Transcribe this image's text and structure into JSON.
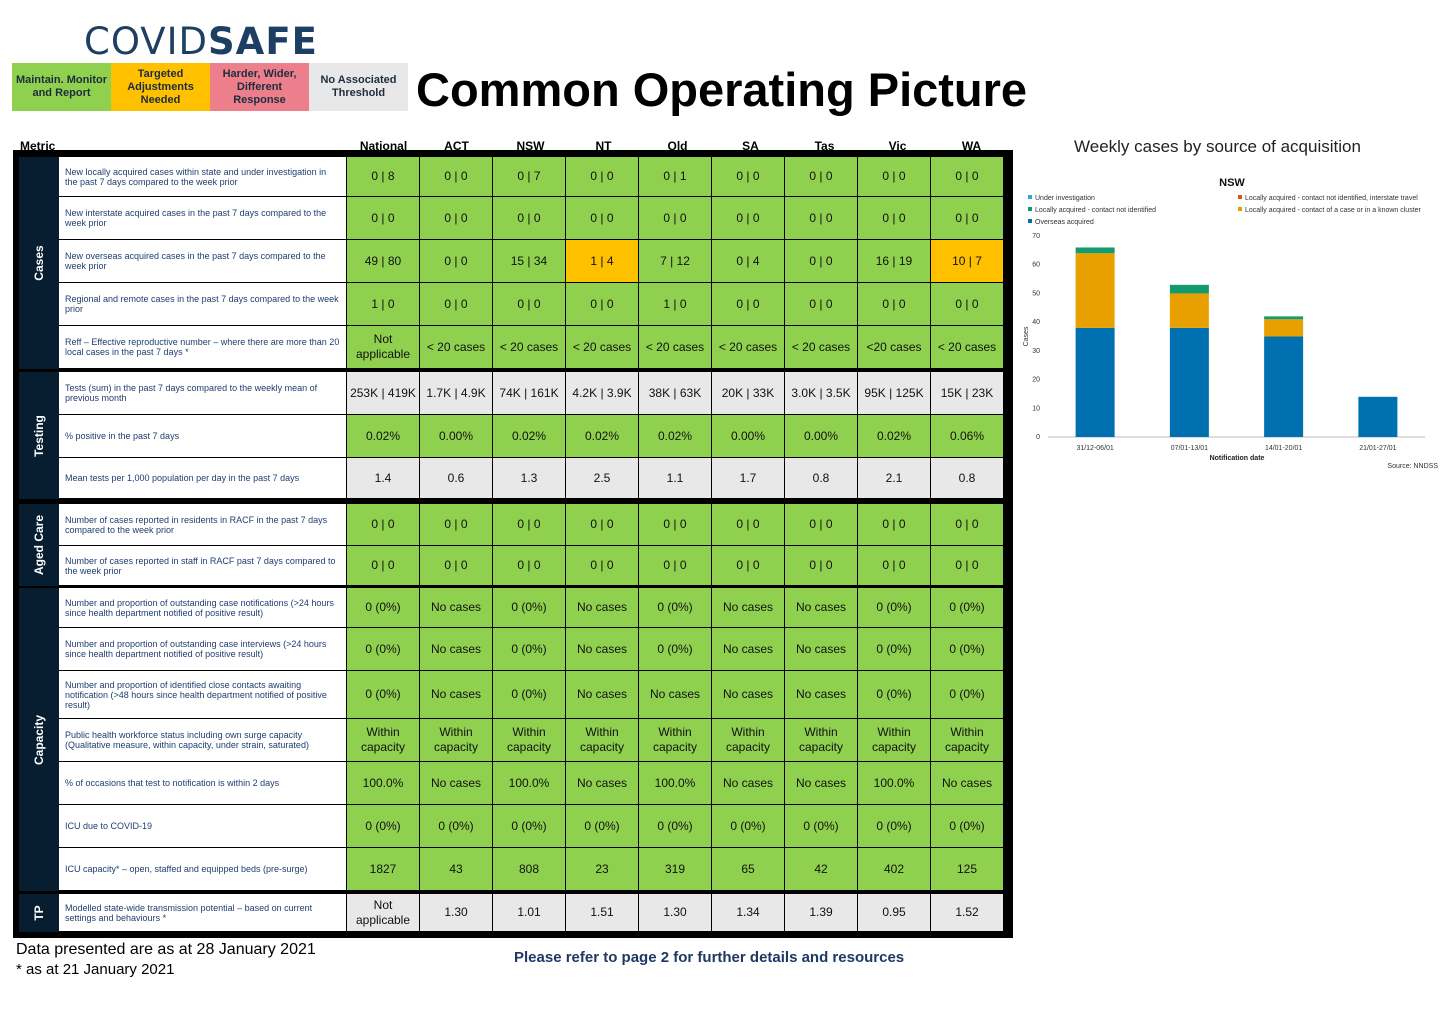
{
  "logo": {
    "part1": "COVID",
    "part2": "SAFE"
  },
  "legend": [
    {
      "label": "Maintain. Monitor and Report",
      "color": "#8fd14f"
    },
    {
      "label": "Targeted Adjustments Needed",
      "color": "#ffc000"
    },
    {
      "label": "Harder, Wider, Different Response",
      "color": "#ec7f8b"
    },
    {
      "label": "No Associated Threshold",
      "color": "#e8e8e8"
    }
  ],
  "title": "Common Operating Picture",
  "metric_header": "Metric",
  "columns": [
    "National",
    "ACT",
    "NSW",
    "NT",
    "Qld",
    "SA",
    "Tas",
    "Vic",
    "WA"
  ],
  "groups": [
    {
      "name": "Cases",
      "rows": [
        {
          "label": "New locally acquired cases within state and under investigation in the past 7 days compared to the week prior",
          "values": [
            "0 | 8",
            "0 | 0",
            "0 | 7",
            "0 | 0",
            "0 | 1",
            "0 | 0",
            "0 | 0",
            "0 | 0",
            "0 | 0"
          ],
          "status": [
            "g",
            "g",
            "g",
            "g",
            "g",
            "g",
            "g",
            "g",
            "g"
          ]
        },
        {
          "label": "New interstate acquired cases in the past 7 days compared to the week prior",
          "values": [
            "0 | 0",
            "0 | 0",
            "0 | 0",
            "0 | 0",
            "0 | 0",
            "0 | 0",
            "0 | 0",
            "0 | 0",
            "0 | 0"
          ],
          "status": [
            "g",
            "g",
            "g",
            "g",
            "g",
            "g",
            "g",
            "g",
            "g"
          ]
        },
        {
          "label": "New overseas acquired cases in the past 7 days compared to the week prior",
          "values": [
            "49 | 80",
            "0 | 0",
            "15 | 34",
            "1 | 4",
            "7 | 12",
            "0 | 4",
            "0 | 0",
            "16 | 19",
            "10 | 7"
          ],
          "status": [
            "g",
            "g",
            "g",
            "a",
            "g",
            "g",
            "g",
            "g",
            "a"
          ]
        },
        {
          "label": "Regional and remote cases in the past 7 days compared to the week prior",
          "values": [
            "1 | 0",
            "0 | 0",
            "0 | 0",
            "0 | 0",
            "1 | 0",
            "0 | 0",
            "0 | 0",
            "0 | 0",
            "0 | 0"
          ],
          "status": [
            "g",
            "g",
            "g",
            "g",
            "g",
            "g",
            "g",
            "g",
            "g"
          ]
        },
        {
          "label": "Reff – Effective reproductive number – where there are more than 20 local cases in the past 7 days *",
          "values": [
            "Not applicable",
            "< 20 cases",
            "< 20 cases",
            "< 20 cases",
            "< 20 cases",
            "< 20 cases",
            "< 20 cases",
            "<20 cases",
            "< 20 cases"
          ],
          "status": [
            "g",
            "g",
            "g",
            "g",
            "g",
            "g",
            "g",
            "g",
            "g"
          ]
        }
      ]
    },
    {
      "name": "Testing",
      "rows": [
        {
          "label": "Tests (sum) in the past 7 days compared to the weekly mean of previous month",
          "values": [
            "253K | 419K",
            "1.7K | 4.9K",
            "74K | 161K",
            "4.2K | 3.9K",
            "38K | 63K",
            "20K | 33K",
            "3.0K | 3.5K",
            "95K | 125K",
            "15K | 23K"
          ],
          "status": [
            "n",
            "n",
            "n",
            "n",
            "n",
            "n",
            "n",
            "n",
            "n"
          ]
        },
        {
          "label": "% positive in the past 7 days",
          "values": [
            "0.02%",
            "0.00%",
            "0.02%",
            "0.02%",
            "0.02%",
            "0.00%",
            "0.00%",
            "0.02%",
            "0.06%"
          ],
          "status": [
            "g",
            "g",
            "g",
            "g",
            "g",
            "g",
            "g",
            "g",
            "g"
          ]
        },
        {
          "label": "Mean tests per 1,000 population per day in the past 7 days",
          "values": [
            "1.4",
            "0.6",
            "1.3",
            "2.5",
            "1.1",
            "1.7",
            "0.8",
            "2.1",
            "0.8"
          ],
          "status": [
            "n",
            "n",
            "n",
            "n",
            "n",
            "n",
            "n",
            "n",
            "n"
          ]
        }
      ]
    },
    {
      "name": "Aged Care",
      "rows": [
        {
          "label": "Number of cases reported in residents in RACF in the past 7 days compared to the week prior",
          "values": [
            "0 | 0",
            "0 | 0",
            "0 | 0",
            "0 | 0",
            "0 | 0",
            "0 | 0",
            "0 | 0",
            "0 | 0",
            "0 | 0"
          ],
          "status": [
            "g",
            "g",
            "g",
            "g",
            "g",
            "g",
            "g",
            "g",
            "g"
          ]
        },
        {
          "label": "Number of cases reported in staff in RACF past 7 days compared to the week prior",
          "values": [
            "0 | 0",
            "0 | 0",
            "0 | 0",
            "0 | 0",
            "0 | 0",
            "0 | 0",
            "0 | 0",
            "0 | 0",
            "0 | 0"
          ],
          "status": [
            "g",
            "g",
            "g",
            "g",
            "g",
            "g",
            "g",
            "g",
            "g"
          ]
        }
      ]
    },
    {
      "name": "Capacity",
      "rows": [
        {
          "label": "Number and proportion of outstanding case notifications (>24 hours since health department notified of positive result)",
          "values": [
            "0 (0%)",
            "No cases",
            "0 (0%)",
            "No cases",
            "0 (0%)",
            "No cases",
            "No cases",
            "0 (0%)",
            "0 (0%)"
          ],
          "status": [
            "g",
            "g",
            "g",
            "g",
            "g",
            "g",
            "g",
            "g",
            "g"
          ]
        },
        {
          "label": "Number and proportion of outstanding case interviews (>24 hours since health department notified of positive result)",
          "values": [
            "0 (0%)",
            "No cases",
            "0 (0%)",
            "No cases",
            "0 (0%)",
            "No cases",
            "No cases",
            "0 (0%)",
            "0 (0%)"
          ],
          "status": [
            "g",
            "g",
            "g",
            "g",
            "g",
            "g",
            "g",
            "g",
            "g"
          ]
        },
        {
          "label": "Number and proportion of identified close contacts awaiting notification (>48 hours since health department notified of positive result)",
          "values": [
            "0 (0%)",
            "No cases",
            "0 (0%)",
            "No cases",
            "No cases",
            "No cases",
            "No cases",
            "0 (0%)",
            "0 (0%)"
          ],
          "status": [
            "g",
            "g",
            "g",
            "g",
            "g",
            "g",
            "g",
            "g",
            "g"
          ]
        },
        {
          "label": "Public health workforce status including own surge capacity (Qualitative measure, within capacity, under strain, saturated)",
          "values": [
            "Within capacity",
            "Within capacity",
            "Within capacity",
            "Within capacity",
            "Within capacity",
            "Within capacity",
            "Within capacity",
            "Within capacity",
            "Within capacity"
          ],
          "status": [
            "g",
            "g",
            "g",
            "g",
            "g",
            "g",
            "g",
            "g",
            "g"
          ]
        },
        {
          "label": "% of occasions that test to notification is within 2 days",
          "values": [
            "100.0%",
            "No cases",
            "100.0%",
            "No cases",
            "100.0%",
            "No cases",
            "No cases",
            "100.0%",
            "No cases"
          ],
          "status": [
            "g",
            "g",
            "g",
            "g",
            "g",
            "g",
            "g",
            "g",
            "g"
          ]
        },
        {
          "label": "ICU due to COVID-19",
          "values": [
            "0 (0%)",
            "0 (0%)",
            "0 (0%)",
            "0 (0%)",
            "0 (0%)",
            "0 (0%)",
            "0 (0%)",
            "0 (0%)",
            "0 (0%)"
          ],
          "status": [
            "g",
            "g",
            "g",
            "g",
            "g",
            "g",
            "g",
            "g",
            "g"
          ]
        },
        {
          "label": "ICU capacity* – open, staffed and equipped beds (pre-surge)",
          "values": [
            "1827",
            "43",
            "808",
            "23",
            "319",
            "65",
            "42",
            "402",
            "125"
          ],
          "status": [
            "g",
            "g",
            "g",
            "g",
            "g",
            "g",
            "g",
            "g",
            "g"
          ]
        }
      ]
    },
    {
      "name": "TP",
      "rows": [
        {
          "label": "Modelled state-wide transmission potential – based on current settings and behaviours *",
          "values": [
            "Not applicable",
            "1.30",
            "1.01",
            "1.51",
            "1.30",
            "1.34",
            "1.39",
            "0.95",
            "1.52"
          ],
          "status": [
            "n",
            "n",
            "n",
            "n",
            "n",
            "n",
            "n",
            "n",
            "n"
          ]
        }
      ]
    }
  ],
  "footer": {
    "date_note": "Data presented are as at 28 January 2021",
    "asterisk_note": "* as at 21 January 2021",
    "refer": "Please refer to page 2 for further details and resources"
  },
  "chart_heading": "Weekly cases by source of acquisition",
  "chart_data": {
    "type": "bar",
    "stacked": true,
    "title": "NSW",
    "categories": [
      "31/12-06/01",
      "07/01-13/01",
      "14/01-20/01",
      "21/01-27/01"
    ],
    "series": [
      {
        "name": "Overseas acquired",
        "color": "#0070b0",
        "values": [
          38,
          38,
          35,
          14
        ]
      },
      {
        "name": "Locally acquired - contact of a case or in a known cluster",
        "color": "#e8a000",
        "values": [
          26,
          12,
          6,
          0
        ]
      },
      {
        "name": "Locally acquired - contact not identified",
        "color": "#139a6d",
        "values": [
          2,
          3,
          1,
          0
        ]
      },
      {
        "name": "Under investigation",
        "color": "#29a9e0",
        "values": [
          0,
          0,
          0,
          0
        ]
      },
      {
        "name": "Locally acquired - contact not identified, interstate travel",
        "color": "#e0501e",
        "values": [
          0,
          0,
          0,
          0
        ]
      }
    ],
    "legend_order": [
      "Under investigation",
      "Locally acquired - contact not identified, interstate travel",
      "Locally acquired - contact not identified",
      "Locally acquired - contact of a case or in a known cluster",
      "Overseas acquired"
    ],
    "xlabel": "Notification date",
    "ylabel": "Cases",
    "ylim": [
      0,
      70
    ],
    "yticks": [
      0,
      10,
      20,
      30,
      40,
      50,
      60,
      70
    ],
    "source": "Source: NNDSS",
    "grid": false,
    "legend_position": "top"
  }
}
